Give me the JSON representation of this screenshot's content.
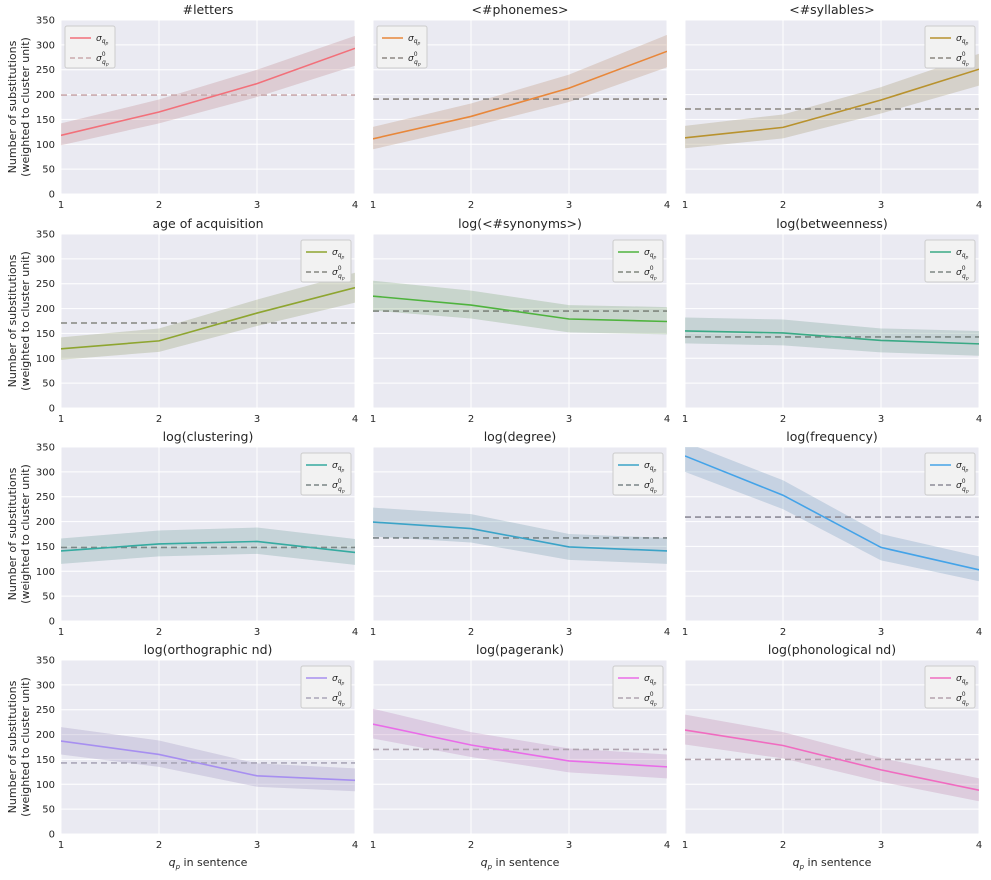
{
  "figure": {
    "ylabel_line1": "Number of substitutions",
    "ylabel_line2": "(weighted to cluster unit)",
    "xlabel_var": "q",
    "xlabel_sub": "p",
    "xlabel_rest": " in sentence",
    "legend_sigma": "σ",
    "legend_sub": "q",
    "legend_subsub": "p",
    "legend_sup0": "0"
  },
  "chart_data": [
    {
      "type": "line",
      "title": "#letters",
      "x": [
        1,
        2,
        3,
        4
      ],
      "ylim": [
        0,
        350
      ],
      "yticks": [
        0,
        50,
        100,
        150,
        200,
        250,
        300,
        350
      ],
      "series": [
        {
          "values": [
            118,
            165,
            222,
            293
          ],
          "lower": [
            98,
            142,
            195,
            258
          ],
          "upper": [
            142,
            190,
            250,
            318
          ]
        }
      ],
      "baseline": 199,
      "color": "#f2707a",
      "baseline_color": "#c9a9ad",
      "legend": "top-left"
    },
    {
      "type": "line",
      "title": "<#phonemes>",
      "x": [
        1,
        2,
        3,
        4
      ],
      "ylim": [
        0,
        350
      ],
      "series": [
        {
          "values": [
            111,
            156,
            213,
            287
          ],
          "lower": [
            90,
            135,
            185,
            255
          ],
          "upper": [
            135,
            182,
            240,
            320
          ]
        }
      ],
      "baseline": 191,
      "color": "#e8873a",
      "baseline_color": "#8c8783",
      "legend": "top-left"
    },
    {
      "type": "line",
      "title": "<#syllables>",
      "x": [
        1,
        2,
        3,
        4
      ],
      "ylim": [
        0,
        350
      ],
      "series": [
        {
          "values": [
            113,
            134,
            189,
            251
          ],
          "lower": [
            92,
            112,
            162,
            218
          ],
          "upper": [
            137,
            160,
            215,
            282
          ]
        }
      ],
      "baseline": 171,
      "color": "#b8922e",
      "baseline_color": "#8a8680",
      "legend": "top-right"
    },
    {
      "type": "line",
      "title": "age of acquisition",
      "x": [
        1,
        2,
        3,
        4
      ],
      "ylim": [
        0,
        350
      ],
      "series": [
        {
          "values": [
            119,
            135,
            191,
            242
          ],
          "lower": [
            97,
            113,
            165,
            212
          ],
          "upper": [
            142,
            160,
            218,
            272
          ]
        }
      ],
      "baseline": 171,
      "color": "#8ea530",
      "baseline_color": "#85867f",
      "legend": "top-right"
    },
    {
      "type": "line",
      "title": "log(<#synonyms>)",
      "x": [
        1,
        2,
        3,
        4
      ],
      "ylim": [
        0,
        350
      ],
      "series": [
        {
          "values": [
            225,
            207,
            179,
            174
          ],
          "lower": [
            196,
            180,
            152,
            148
          ],
          "upper": [
            256,
            236,
            207,
            203
          ]
        }
      ],
      "baseline": 195,
      "color": "#4fb33e",
      "baseline_color": "#7f867d",
      "legend": "top-right"
    },
    {
      "type": "line",
      "title": "log(betweenness)",
      "x": [
        1,
        2,
        3,
        4
      ],
      "ylim": [
        0,
        350
      ],
      "series": [
        {
          "values": [
            155,
            151,
            136,
            129
          ],
          "lower": [
            130,
            126,
            112,
            105
          ],
          "upper": [
            182,
            178,
            160,
            155
          ]
        }
      ],
      "baseline": 143,
      "color": "#3aa985",
      "baseline_color": "#7c8683",
      "legend": "top-right"
    },
    {
      "type": "line",
      "title": "log(clustering)",
      "x": [
        1,
        2,
        3,
        4
      ],
      "ylim": [
        0,
        350
      ],
      "series": [
        {
          "values": [
            141,
            155,
            160,
            138
          ],
          "lower": [
            115,
            130,
            135,
            113
          ],
          "upper": [
            166,
            182,
            188,
            165
          ]
        }
      ],
      "baseline": 148,
      "color": "#35aaa0",
      "baseline_color": "#7b8585",
      "legend": "top-right"
    },
    {
      "type": "line",
      "title": "log(degree)",
      "x": [
        1,
        2,
        3,
        4
      ],
      "ylim": [
        0,
        350
      ],
      "series": [
        {
          "values": [
            199,
            186,
            149,
            141
          ],
          "lower": [
            170,
            158,
            123,
            115
          ],
          "upper": [
            228,
            215,
            175,
            167
          ]
        }
      ],
      "baseline": 167,
      "color": "#3ba3c7",
      "baseline_color": "#7a8488",
      "legend": "top-right"
    },
    {
      "type": "line",
      "title": "log(frequency)",
      "x": [
        1,
        2,
        3,
        4
      ],
      "ylim": [
        0,
        350
      ],
      "series": [
        {
          "values": [
            332,
            253,
            148,
            103
          ],
          "lower": [
            300,
            225,
            122,
            80
          ],
          "upper": [
            360,
            283,
            175,
            130
          ]
        }
      ],
      "baseline": 209,
      "color": "#44a3e8",
      "baseline_color": "#8c8b97",
      "legend": "top-right"
    },
    {
      "type": "line",
      "title": "log(orthographic nd)",
      "x": [
        1,
        2,
        3,
        4
      ],
      "ylim": [
        0,
        350
      ],
      "series": [
        {
          "values": [
            187,
            160,
            117,
            108
          ],
          "lower": [
            160,
            135,
            95,
            86
          ],
          "upper": [
            215,
            188,
            142,
            132
          ]
        }
      ],
      "baseline": 143,
      "color": "#a78ff0",
      "baseline_color": "#a9a6b8",
      "legend": "top-right"
    },
    {
      "type": "line",
      "title": "log(pagerank)",
      "x": [
        1,
        2,
        3,
        4
      ],
      "ylim": [
        0,
        350
      ],
      "series": [
        {
          "values": [
            221,
            179,
            147,
            135
          ],
          "lower": [
            192,
            155,
            124,
            112
          ],
          "upper": [
            252,
            205,
            172,
            160
          ]
        }
      ],
      "baseline": 170,
      "color": "#e96ce8",
      "baseline_color": "#b0a4b0",
      "legend": "top-right"
    },
    {
      "type": "line",
      "title": "log(phonological nd)",
      "x": [
        1,
        2,
        3,
        4
      ],
      "ylim": [
        0,
        350
      ],
      "series": [
        {
          "values": [
            209,
            178,
            129,
            88
          ],
          "lower": [
            180,
            152,
            105,
            66
          ],
          "upper": [
            240,
            205,
            153,
            112
          ]
        }
      ],
      "baseline": 150,
      "color": "#f06cc0",
      "baseline_color": "#b3a2ad",
      "legend": "top-right"
    }
  ]
}
